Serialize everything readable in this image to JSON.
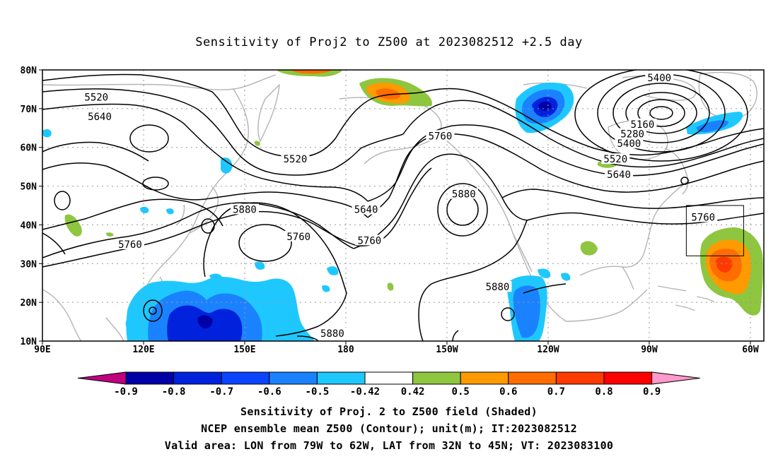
{
  "title": "Sensitivity of Proj2 to Z500 at 2023082512 +2.5 day",
  "map": {
    "lat_labels": [
      "80N",
      "70N",
      "60N",
      "50N",
      "40N",
      "30N",
      "20N",
      "10N"
    ],
    "lon_labels": [
      "90E",
      "120E",
      "150E",
      "180",
      "150W",
      "120W",
      "90W",
      "60W"
    ],
    "extent": {
      "lon_min": 90,
      "lon_max": 304,
      "lat_min": 10,
      "lat_max": 80
    },
    "grid_style": "dotted",
    "valid_box": {
      "lon_from": 281,
      "lon_to": 298,
      "lat_from": 32,
      "lat_to": 45
    },
    "contour_labels": [
      {
        "text": "5520",
        "lon": 106,
        "lat": 73
      },
      {
        "text": "5640",
        "lon": 107,
        "lat": 68
      },
      {
        "text": "5520",
        "lon": 165,
        "lat": 57
      },
      {
        "text": "5760",
        "lon": 208,
        "lat": 63
      },
      {
        "text": "5400",
        "lon": 273,
        "lat": 78
      },
      {
        "text": "5160",
        "lon": 268,
        "lat": 66
      },
      {
        "text": "5280",
        "lon": 265,
        "lat": 63.5
      },
      {
        "text": "5400",
        "lon": 264,
        "lat": 61
      },
      {
        "text": "5520",
        "lon": 260,
        "lat": 57
      },
      {
        "text": "5640",
        "lon": 261,
        "lat": 53
      },
      {
        "text": "5880",
        "lon": 150,
        "lat": 44
      },
      {
        "text": "5640",
        "lon": 186,
        "lat": 44
      },
      {
        "text": "5760",
        "lon": 166,
        "lat": 37
      },
      {
        "text": "5760",
        "lon": 187,
        "lat": 36
      },
      {
        "text": "5880",
        "lon": 215,
        "lat": 48
      },
      {
        "text": "5760",
        "lon": 286,
        "lat": 42
      },
      {
        "text": "5760",
        "lon": 116,
        "lat": 35
      },
      {
        "text": "5880",
        "lon": 225,
        "lat": 24
      },
      {
        "text": "5880",
        "lon": 176,
        "lat": 12
      }
    ]
  },
  "colorbar": {
    "labels": [
      "-0.9",
      "-0.8",
      "-0.7",
      "-0.6",
      "-0.5",
      "-0.42",
      "0.42",
      "0.5",
      "0.6",
      "0.7",
      "0.8",
      "0.9"
    ],
    "colors": [
      "#c0007f",
      "#0000a6",
      "#0022dd",
      "#0a44ff",
      "#1b82ff",
      "#1ec8ff",
      "#ffffff",
      "#8ec63f",
      "#ff9a00",
      "#ff6d00",
      "#ff3a00",
      "#ff0000",
      "#ff99cc"
    ]
  },
  "shading_colors": {
    "neg_weak": "#1ec8ff",
    "neg_mid": "#1b82ff",
    "neg_strong": "#0022dd",
    "neg_max": "#0000a6",
    "pos_weak": "#8ec63f",
    "pos_mid": "#ff9a00",
    "pos_strong": "#ff6d00",
    "pos_max": "#ff3a00",
    "coast": "#b4b4b4"
  },
  "captions": {
    "line1": "Sensitivity of Proj. 2 to Z500 field (Shaded)",
    "line2": "NCEP ensemble mean Z500 (Contour); unit(m); IT:2023082512",
    "line3": "Valid area: LON from 79W to 62W, LAT from 32N to 45N; VT: 2023083100"
  }
}
